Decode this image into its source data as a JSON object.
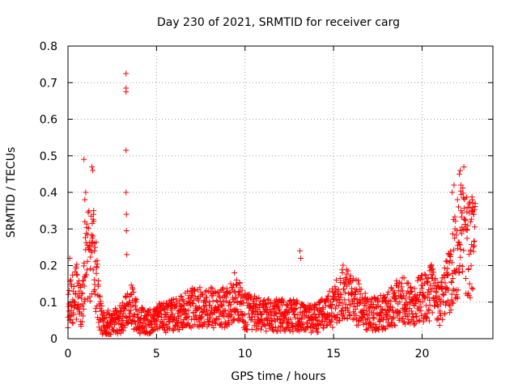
{
  "chart_data": {
    "type": "scatter",
    "title": "Day 230 of 2021, SRMTID for receiver carg",
    "xlabel": "GPS time / hours",
    "ylabel": "SRMTID / TECUs",
    "xlim": [
      0,
      24
    ],
    "ylim": [
      0,
      0.8
    ],
    "xticks": [
      "0",
      "5",
      "10",
      "15",
      "20"
    ],
    "yticks": [
      "0",
      "0.1",
      "0.2",
      "0.3",
      "0.4",
      "0.5",
      "0.6",
      "0.7",
      "0.8"
    ],
    "grid": true,
    "marker": "+",
    "color": "#ff0000",
    "series": [
      {
        "name": "SRMTID",
        "profile_x": [
          0,
          0.2,
          0.5,
          0.8,
          1.0,
          1.2,
          1.5,
          1.8,
          2.0,
          2.5,
          3.0,
          3.2,
          3.5,
          4.0,
          4.5,
          5.0,
          6.0,
          7.0,
          8.0,
          9.0,
          9.5,
          10.0,
          11.0,
          12.0,
          13.0,
          13.5,
          14.0,
          15.0,
          15.5,
          16.0,
          16.5,
          17.0,
          18.0,
          18.8,
          19.2,
          20.0,
          20.5,
          21.0,
          21.5,
          22.0,
          22.3,
          22.6,
          23.0
        ],
        "profile_y": [
          0.08,
          0.1,
          0.12,
          0.07,
          0.2,
          0.22,
          0.2,
          0.06,
          0.04,
          0.04,
          0.05,
          0.06,
          0.09,
          0.05,
          0.04,
          0.05,
          0.06,
          0.08,
          0.08,
          0.08,
          0.1,
          0.07,
          0.06,
          0.06,
          0.06,
          0.05,
          0.05,
          0.08,
          0.12,
          0.1,
          0.09,
          0.06,
          0.07,
          0.1,
          0.09,
          0.1,
          0.12,
          0.08,
          0.15,
          0.24,
          0.3,
          0.24,
          0.23
        ],
        "spikes": [
          {
            "x": 0.9,
            "y": 0.49
          },
          {
            "x": 0.95,
            "y": 0.38
          },
          {
            "x": 1.0,
            "y": 0.4
          },
          {
            "x": 1.35,
            "y": 0.47
          },
          {
            "x": 1.4,
            "y": 0.46
          },
          {
            "x": 1.45,
            "y": 0.35
          },
          {
            "x": 0.95,
            "y": 0.32
          },
          {
            "x": 1.5,
            "y": 0.24
          },
          {
            "x": 3.28,
            "y": 0.725
          },
          {
            "x": 3.28,
            "y": 0.685
          },
          {
            "x": 3.28,
            "y": 0.675
          },
          {
            "x": 3.28,
            "y": 0.515
          },
          {
            "x": 3.28,
            "y": 0.4
          },
          {
            "x": 3.3,
            "y": 0.34
          },
          {
            "x": 3.3,
            "y": 0.295
          },
          {
            "x": 3.32,
            "y": 0.23
          },
          {
            "x": 13.1,
            "y": 0.24
          },
          {
            "x": 13.15,
            "y": 0.22
          },
          {
            "x": 22.1,
            "y": 0.45
          },
          {
            "x": 22.15,
            "y": 0.46
          },
          {
            "x": 22.2,
            "y": 0.42
          },
          {
            "x": 22.0,
            "y": 0.38
          },
          {
            "x": 21.7,
            "y": 0.4
          },
          {
            "x": 21.8,
            "y": 0.42
          },
          {
            "x": 22.8,
            "y": 0.35
          },
          {
            "x": 22.9,
            "y": 0.34
          },
          {
            "x": 22.4,
            "y": 0.3
          },
          {
            "x": 9.4,
            "y": 0.18
          },
          {
            "x": 15.5,
            "y": 0.18
          },
          {
            "x": 0.1,
            "y": 0.22
          }
        ]
      }
    ]
  }
}
